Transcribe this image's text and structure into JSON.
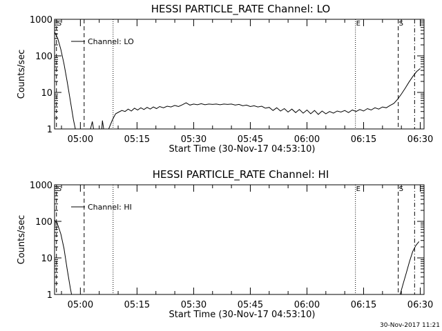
{
  "footer_timestamp": "30-Nov-2017 11:21",
  "chart_data": [
    {
      "type": "line",
      "title": "HESSI PARTICLE_RATE Channel: LO",
      "xlabel": "Start Time (30-Nov-17 04:53:10)",
      "ylabel": "Counts/sec",
      "yscale": "log",
      "ylim": [
        1,
        1000
      ],
      "xlim": [
        "04:53:10",
        "06:31:00"
      ],
      "yticks": [
        "1",
        "10",
        "100",
        "1000"
      ],
      "xticks": [
        "05:00",
        "05:15",
        "05:30",
        "05:45",
        "06:00",
        "06:15",
        "06:30"
      ],
      "legend": "top-left",
      "series": [
        {
          "name": "Channel: LO",
          "points": [
            [
              "04:53:10",
              450
            ],
            [
              "04:54:00",
              300
            ],
            [
              "04:54:50",
              150
            ],
            [
              "04:55:40",
              60
            ],
            [
              "04:56:30",
              20
            ],
            [
              "04:57:20",
              6
            ],
            [
              "04:58:10",
              1.8
            ],
            [
              "04:58:40",
              1
            ],
            [
              "05:02:40",
              1
            ],
            [
              "05:03:10",
              1.6
            ],
            [
              "05:03:30",
              1
            ],
            [
              "05:05:40",
              1
            ],
            [
              "05:05:50",
              1.7
            ],
            [
              "05:06:10",
              1
            ],
            [
              "05:07:30",
              1
            ],
            [
              "05:08:30",
              1.8
            ],
            [
              "05:09:20",
              2.6
            ],
            [
              "05:10:10",
              2.9
            ],
            [
              "05:11:00",
              3.2
            ],
            [
              "05:11:50",
              3.0
            ],
            [
              "05:12:40",
              3.5
            ],
            [
              "05:13:30",
              3.1
            ],
            [
              "05:14:20",
              3.7
            ],
            [
              "05:15:10",
              3.3
            ],
            [
              "05:16:00",
              3.8
            ],
            [
              "05:16:50",
              3.4
            ],
            [
              "05:17:40",
              3.9
            ],
            [
              "05:18:30",
              3.5
            ],
            [
              "05:19:20",
              4.0
            ],
            [
              "05:20:10",
              3.6
            ],
            [
              "05:21:00",
              4.1
            ],
            [
              "05:22:00",
              3.8
            ],
            [
              "05:23:00",
              4.2
            ],
            [
              "05:24:00",
              4.0
            ],
            [
              "05:25:00",
              4.4
            ],
            [
              "05:26:00",
              4.1
            ],
            [
              "05:27:00",
              4.6
            ],
            [
              "05:28:00",
              5.2
            ],
            [
              "05:29:00",
              4.5
            ],
            [
              "05:30:00",
              4.8
            ],
            [
              "05:31:00",
              4.6
            ],
            [
              "05:32:00",
              4.9
            ],
            [
              "05:33:00",
              4.6
            ],
            [
              "05:34:00",
              4.8
            ],
            [
              "05:35:00",
              4.7
            ],
            [
              "05:36:00",
              4.8
            ],
            [
              "05:37:00",
              4.6
            ],
            [
              "05:38:00",
              4.8
            ],
            [
              "05:39:00",
              4.7
            ],
            [
              "05:40:00",
              4.8
            ],
            [
              "05:41:00",
              4.5
            ],
            [
              "05:42:00",
              4.7
            ],
            [
              "05:43:00",
              4.3
            ],
            [
              "05:44:00",
              4.5
            ],
            [
              "05:45:00",
              4.1
            ],
            [
              "05:46:00",
              4.3
            ],
            [
              "05:47:00",
              4.0
            ],
            [
              "05:48:00",
              4.2
            ],
            [
              "05:49:00",
              3.7
            ],
            [
              "05:50:00",
              3.9
            ],
            [
              "05:51:00",
              3.2
            ],
            [
              "05:52:00",
              3.8
            ],
            [
              "05:53:00",
              3.1
            ],
            [
              "05:54:00",
              3.6
            ],
            [
              "05:55:00",
              2.9
            ],
            [
              "05:56:00",
              3.5
            ],
            [
              "05:57:00",
              2.8
            ],
            [
              "05:58:00",
              3.4
            ],
            [
              "05:59:00",
              2.7
            ],
            [
              "06:00:00",
              3.3
            ],
            [
              "06:01:00",
              2.6
            ],
            [
              "06:02:00",
              3.2
            ],
            [
              "06:03:00",
              2.5
            ],
            [
              "06:04:00",
              3.1
            ],
            [
              "06:05:00",
              2.6
            ],
            [
              "06:06:00",
              3.0
            ],
            [
              "06:07:00",
              2.7
            ],
            [
              "06:08:00",
              3.1
            ],
            [
              "06:09:00",
              2.9
            ],
            [
              "06:10:00",
              3.2
            ],
            [
              "06:11:00",
              2.8
            ],
            [
              "06:12:00",
              3.3
            ],
            [
              "06:13:00",
              3.0
            ],
            [
              "06:14:00",
              3.4
            ],
            [
              "06:15:00",
              3.1
            ],
            [
              "06:16:00",
              3.6
            ],
            [
              "06:17:00",
              3.3
            ],
            [
              "06:18:00",
              3.8
            ],
            [
              "06:19:00",
              3.5
            ],
            [
              "06:20:00",
              4.0
            ],
            [
              "06:21:00",
              3.8
            ],
            [
              "06:22:00",
              4.4
            ],
            [
              "06:23:00",
              5.0
            ],
            [
              "06:24:00",
              6.5
            ],
            [
              "06:25:00",
              9
            ],
            [
              "06:26:00",
              13
            ],
            [
              "06:27:00",
              19
            ],
            [
              "06:28:00",
              27
            ],
            [
              "06:29:00",
              37
            ],
            [
              "06:30:00",
              45
            ]
          ]
        }
      ],
      "markers": [
        {
          "time": "04:53:40",
          "style": "dashed",
          "label": "S"
        },
        {
          "time": "05:01:00",
          "style": "dashed",
          "label": ""
        },
        {
          "time": "05:08:40",
          "style": "dotted",
          "label": ""
        },
        {
          "time": "06:12:50",
          "style": "dotted",
          "label": "E"
        },
        {
          "time": "06:24:10",
          "style": "dashed",
          "label": "S"
        },
        {
          "time": "06:28:30",
          "style": "dashdot",
          "label": ""
        }
      ]
    },
    {
      "type": "line",
      "title": "HESSI PARTICLE_RATE Channel: HI",
      "xlabel": "Start Time (30-Nov-17 04:53:10)",
      "ylabel": "Counts/sec",
      "yscale": "log",
      "ylim": [
        1,
        1000
      ],
      "xlim": [
        "04:53:10",
        "06:31:00"
      ],
      "yticks": [
        "1",
        "10",
        "100",
        "1000"
      ],
      "xticks": [
        "05:00",
        "05:15",
        "05:30",
        "05:45",
        "06:00",
        "06:15",
        "06:30"
      ],
      "legend": "top-left",
      "series": [
        {
          "name": "Channel: HI",
          "points": [
            [
              "04:53:10",
              110
            ],
            [
              "04:54:00",
              80
            ],
            [
              "04:54:50",
              45
            ],
            [
              "04:55:40",
              18
            ],
            [
              "04:56:30",
              5
            ],
            [
              "04:57:20",
              1.5
            ],
            [
              "04:57:40",
              1
            ],
            [
              "06:24:40",
              1
            ],
            [
              "06:25:30",
              2
            ],
            [
              "06:26:20",
              4
            ],
            [
              "06:27:10",
              8
            ],
            [
              "06:28:00",
              15
            ],
            [
              "06:28:50",
              22
            ],
            [
              "06:29:40",
              28
            ]
          ]
        }
      ],
      "markers": [
        {
          "time": "04:53:40",
          "style": "dashed",
          "label": "S"
        },
        {
          "time": "05:01:00",
          "style": "dashed",
          "label": ""
        },
        {
          "time": "05:08:40",
          "style": "dotted",
          "label": ""
        },
        {
          "time": "06:12:50",
          "style": "dotted",
          "label": "E"
        },
        {
          "time": "06:24:10",
          "style": "dashed",
          "label": "S"
        },
        {
          "time": "06:28:30",
          "style": "dashdot",
          "label": ""
        }
      ]
    }
  ]
}
